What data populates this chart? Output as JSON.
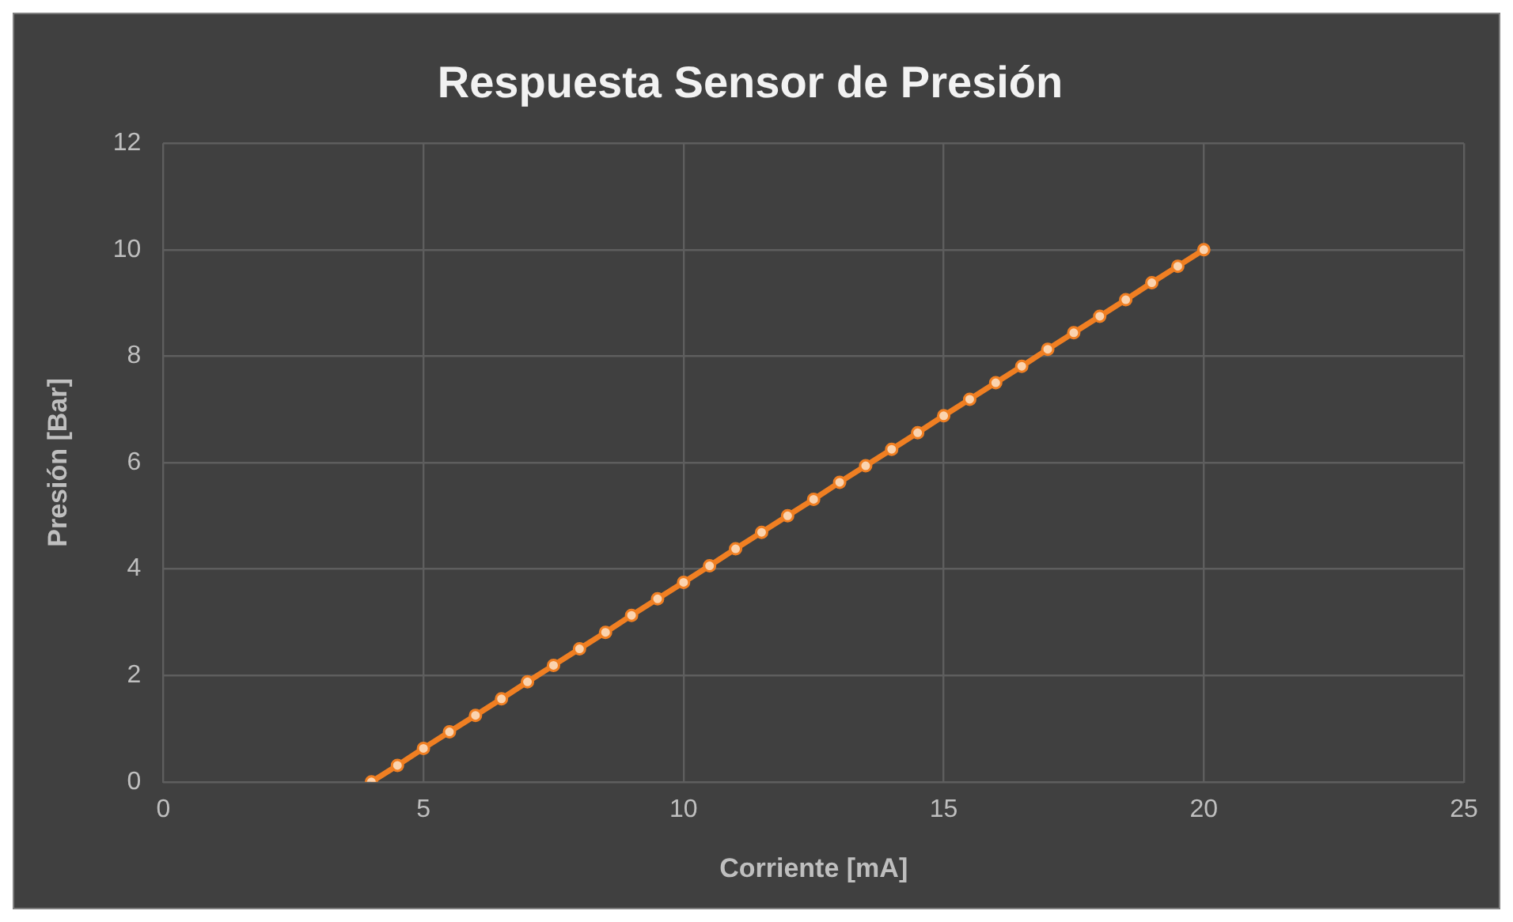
{
  "chart_data": {
    "type": "line",
    "title": "Respuesta Sensor de Presión",
    "xlabel": "Corriente [mA]",
    "ylabel": "Presión [Bar]",
    "x": [
      4,
      4.5,
      5,
      5.5,
      6,
      6.5,
      7,
      7.5,
      8,
      8.5,
      9,
      9.5,
      10,
      10.5,
      11,
      11.5,
      12,
      12.5,
      13,
      13.5,
      14,
      14.5,
      15,
      15.5,
      16,
      16.5,
      17,
      17.5,
      18,
      18.5,
      19,
      19.5,
      20
    ],
    "series": [
      {
        "color": "#f07f22",
        "values": [
          0,
          0.31,
          0.63,
          0.94,
          1.25,
          1.56,
          1.88,
          2.19,
          2.5,
          2.81,
          3.13,
          3.44,
          3.75,
          4.06,
          4.38,
          4.69,
          5,
          5.31,
          5.63,
          5.94,
          6.25,
          6.56,
          6.88,
          7.19,
          7.5,
          7.81,
          8.13,
          8.44,
          8.75,
          9.06,
          9.38,
          9.69,
          10
        ]
      }
    ],
    "xlim": [
      0,
      25
    ],
    "xticks": [
      0,
      5,
      10,
      15,
      20,
      25
    ],
    "ylim": [
      0,
      12
    ],
    "yticks": [
      0,
      2,
      4,
      6,
      8,
      10,
      12
    ],
    "grid": true,
    "marker": "circle",
    "line_style": "solid"
  }
}
